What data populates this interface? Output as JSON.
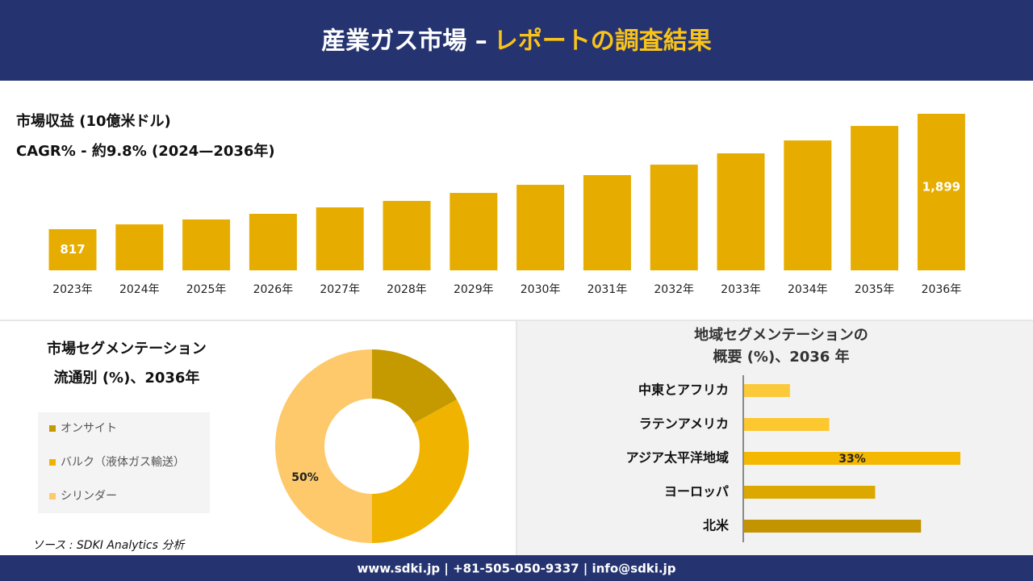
{
  "header": {
    "title_main": "産業ガス市場 –",
    "title_accent": "レポートの調査結果"
  },
  "chart_data": [
    {
      "type": "bar",
      "title": "市場収益 (10億米ドル)",
      "subtitle": "CAGR% - 約9.8% (2024—2036年)",
      "categories": [
        "2023年",
        "2024年",
        "2025年",
        "2026年",
        "2027年",
        "2028年",
        "2029年",
        "2030年",
        "2031年",
        "2032年",
        "2033年",
        "2034年",
        "2035年",
        "2036年"
      ],
      "values": [
        817,
        862,
        908,
        961,
        1021,
        1082,
        1157,
        1233,
        1324,
        1422,
        1528,
        1649,
        1785,
        1899
      ],
      "value_labels": [
        "817",
        null,
        null,
        null,
        null,
        null,
        null,
        null,
        null,
        null,
        null,
        null,
        null,
        "1,899"
      ],
      "color": "#e6ad00",
      "ylim": [
        431,
        1899
      ]
    },
    {
      "type": "pie",
      "title": "市場セグメンテーション",
      "subtitle": "流通別 (%)、2036年",
      "categories": [
        "オンサイト",
        "バルク（液体ガス輸送）",
        "シリンダー"
      ],
      "values": [
        17,
        33,
        50
      ],
      "value_labels": [
        null,
        null,
        "50%"
      ],
      "colors": [
        "#c49a00",
        "#f0b400",
        "#fdc96a"
      ]
    },
    {
      "type": "hbar",
      "title": "地域セグメンテーションの",
      "subtitle": "概要 (%)、2036 年",
      "categories": [
        "中東とアフリカ",
        "ラテンアメリカ",
        "アジア太平洋地域",
        "ヨーロッパ",
        "北米"
      ],
      "values": [
        7,
        13,
        33,
        20,
        27
      ],
      "value_labels": [
        null,
        null,
        "33%",
        null,
        null
      ],
      "colors": [
        "#fbc93a",
        "#fdc72f",
        "#f5b800",
        "#dca800",
        "#c39400"
      ],
      "xlim": [
        0,
        33
      ]
    }
  ],
  "source": "ソース : SDKI Analytics 分析",
  "footer": "www.sdki.jp | +81-505-050-9337 | info@sdki.jp"
}
